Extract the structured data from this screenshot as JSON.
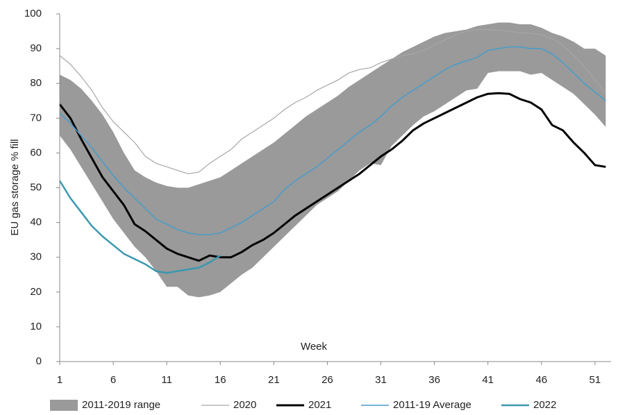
{
  "chart_data": {
    "type": "line",
    "y_label": "EU gas storage % fill",
    "x_label": "Week",
    "xlim": [
      1,
      52.5
    ],
    "xticks": [
      1,
      6,
      11,
      16,
      21,
      26,
      31,
      36,
      41,
      46,
      51
    ],
    "ylim": [
      0,
      100
    ],
    "yticks": [
      0,
      10,
      20,
      30,
      40,
      50,
      60,
      70,
      80,
      90,
      100
    ],
    "x": [
      1,
      2,
      3,
      4,
      5,
      6,
      7,
      8,
      9,
      10,
      11,
      12,
      13,
      14,
      15,
      16,
      17,
      18,
      19,
      20,
      21,
      22,
      23,
      24,
      25,
      26,
      27,
      28,
      29,
      30,
      31,
      32,
      33,
      34,
      35,
      36,
      37,
      38,
      39,
      40,
      41,
      42,
      43,
      44,
      45,
      46,
      47,
      48,
      49,
      50,
      51,
      52
    ],
    "series": [
      {
        "name": "2011-2019 range",
        "type": "range",
        "color": "#9a9a9a",
        "high": [
          82.5,
          81,
          78.5,
          75,
          71,
          66,
          60,
          55,
          53,
          51.5,
          50.5,
          50,
          50,
          51,
          52,
          53,
          55,
          57,
          59,
          61,
          63,
          65.5,
          68,
          70.5,
          72.5,
          74.5,
          76.5,
          79,
          81,
          83,
          85,
          87,
          89,
          90.5,
          92,
          93.5,
          94.5,
          95,
          95.5,
          96.5,
          97,
          97.5,
          97.5,
          97,
          97,
          96,
          94.5,
          93.5,
          92,
          90,
          90,
          88
        ],
        "low": [
          65,
          61,
          56,
          51,
          46,
          41,
          37,
          33,
          30,
          26,
          21.5,
          21.5,
          19,
          18.5,
          19,
          20,
          22.5,
          25,
          27,
          30,
          33,
          36,
          39,
          42,
          45,
          47,
          49,
          52,
          55,
          57,
          56.5,
          62,
          65,
          68,
          70.5,
          72,
          74,
          76,
          78,
          78.5,
          83,
          83.5,
          83.5,
          83.5,
          82.5,
          83,
          81,
          79,
          77,
          74,
          71,
          67.5
        ]
      },
      {
        "name": "2020",
        "color": "#a6a6a6",
        "width": 1.2,
        "values": [
          88,
          85.5,
          82,
          78,
          73,
          69,
          66,
          63,
          59,
          57,
          56,
          55,
          54,
          54.5,
          57,
          59,
          61,
          64,
          66,
          68,
          70,
          72.5,
          74.5,
          76,
          78,
          79.5,
          81,
          83,
          84,
          84.5,
          86,
          87,
          88,
          88.5,
          89.5,
          91,
          92.5,
          94,
          95,
          95.5,
          95.5,
          95.3,
          95,
          94.5,
          94.5,
          94,
          93,
          91,
          88,
          85,
          81,
          77
        ]
      },
      {
        "name": "2021",
        "color": "#000000",
        "width": 3,
        "values": [
          74,
          70,
          64,
          58.5,
          53,
          49,
          45,
          39.5,
          37.5,
          35,
          32.5,
          31,
          30,
          29,
          30.5,
          30,
          30,
          31.5,
          33.5,
          35,
          37,
          39.5,
          42,
          44,
          46,
          48,
          50,
          52,
          54,
          56.5,
          59,
          61,
          63.5,
          66.5,
          68.5,
          70,
          71.5,
          73,
          74.5,
          76,
          77,
          77.2,
          77,
          75.5,
          74.5,
          72.5,
          68,
          66.5,
          63,
          60,
          56.5,
          56
        ]
      },
      {
        "name": "2011-19 Average",
        "color": "#4a9cc8",
        "width": 1.6,
        "values": [
          71.5,
          68.5,
          65,
          61.5,
          57.5,
          53.5,
          50,
          47,
          44,
          41,
          39.5,
          38,
          37,
          36.5,
          36.5,
          37,
          38.5,
          40,
          42,
          44,
          46,
          49.5,
          52,
          54,
          56,
          58.5,
          61,
          63.5,
          66,
          68,
          70.5,
          73.5,
          76,
          78,
          80,
          82,
          84,
          85.5,
          86.5,
          87.5,
          89.5,
          90,
          90.5,
          90.5,
          90,
          90,
          88.5,
          86,
          83,
          80,
          77.5,
          75
        ]
      },
      {
        "name": "2022",
        "color": "#3a98b0",
        "width": 2.5,
        "values": [
          52,
          47,
          43,
          39,
          36,
          33.5,
          31,
          29.5,
          28,
          26,
          25.5,
          26,
          26.5,
          27,
          28.5,
          30.5,
          null,
          null,
          null,
          null,
          null,
          null,
          null,
          null,
          null,
          null,
          null,
          null,
          null,
          null,
          null,
          null,
          null,
          null,
          null,
          null,
          null,
          null,
          null,
          null,
          null,
          null,
          null,
          null,
          null,
          null,
          null,
          null,
          null,
          null,
          null,
          null
        ]
      }
    ]
  }
}
